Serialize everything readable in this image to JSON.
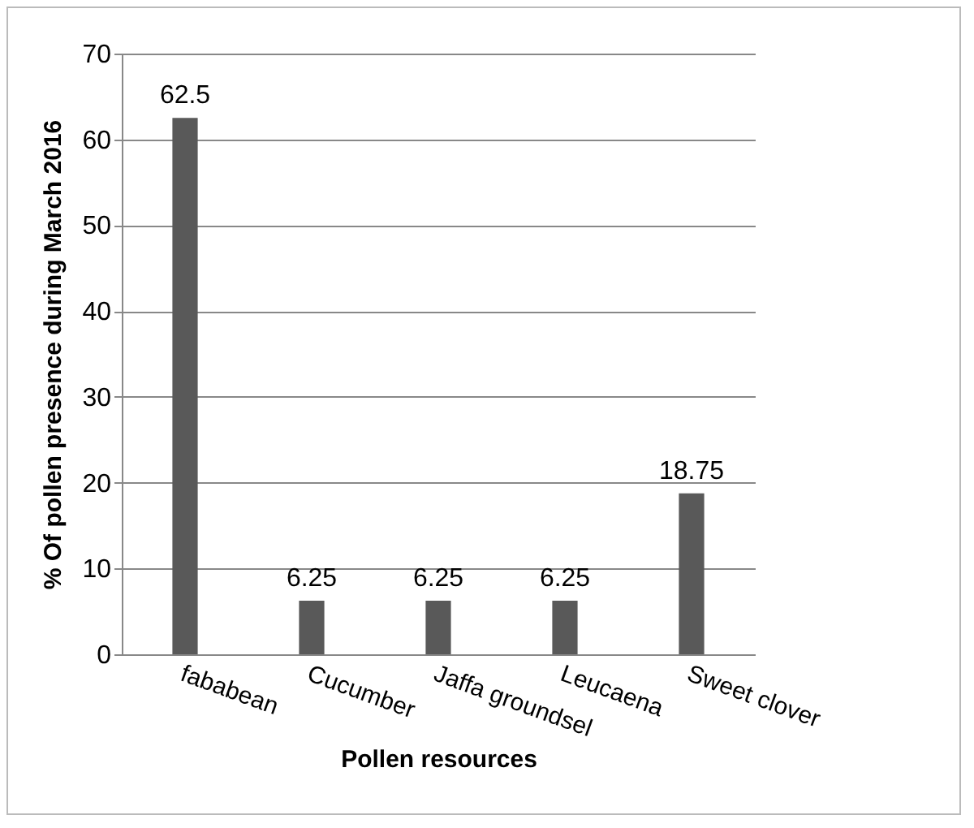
{
  "chart_data": {
    "type": "bar",
    "xlabel": "Pollen resources",
    "ylabel": "% Of pollen presence during March 2016",
    "categories": [
      "fababean",
      "Cucumber",
      "Jaffa groundsel",
      "Leucaena",
      "Sweet clover"
    ],
    "values": [
      62.5,
      6.25,
      6.25,
      6.25,
      18.75
    ],
    "color": "#595959",
    "ylim": [
      0,
      70
    ],
    "yticks": [
      0,
      10,
      20,
      30,
      40,
      50,
      60,
      70
    ],
    "grid": "y",
    "data_labels": true
  }
}
